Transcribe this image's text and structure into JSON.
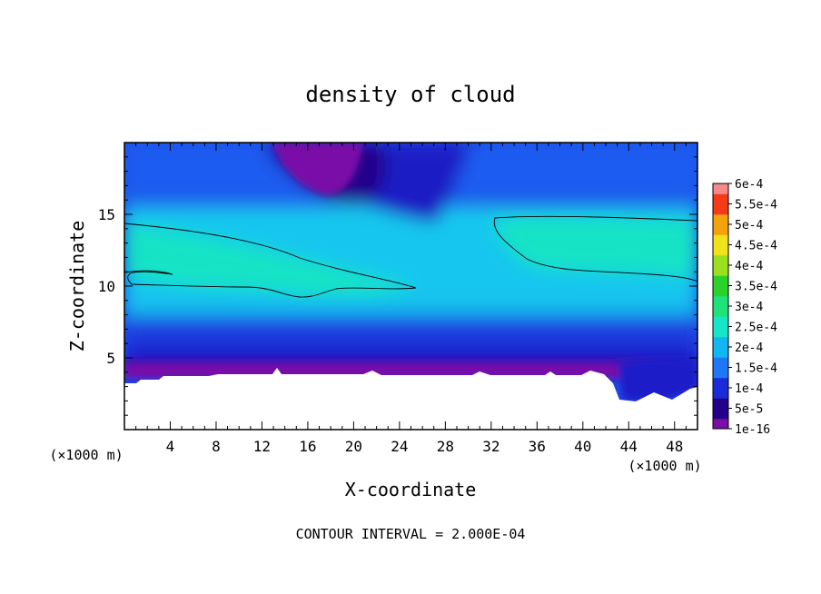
{
  "chart_data": {
    "type": "heatmap",
    "title": "density of cloud",
    "xlabel": "X-coordinate",
    "ylabel": "Z-coordinate",
    "x_unit_label": "(×1000 m)",
    "y_unit_label": "(×1000 m)",
    "footer": "CONTOUR INTERVAL = 2.000E-04",
    "xlim": [
      0,
      50
    ],
    "ylim": [
      0,
      20
    ],
    "x_ticks": [
      "4",
      "8",
      "12",
      "16",
      "20",
      "24",
      "28",
      "32",
      "36",
      "40",
      "44",
      "48"
    ],
    "y_ticks": [
      "5",
      "10",
      "15"
    ],
    "colorbar": {
      "labels": [
        "1e-16",
        "5e-5",
        "1e-4",
        "1.5e-4",
        "2e-4",
        "2.5e-4",
        "3e-4",
        "3.5e-4",
        "4e-4",
        "4.5e-4",
        "5e-4",
        "5.5e-4",
        "6e-4"
      ],
      "colors": [
        "#7a0fa8",
        "#23008a",
        "#1a2bd8",
        "#1f78f5",
        "#12b6f0",
        "#16e6c8",
        "#1fe27a",
        "#2bd12b",
        "#9be01c",
        "#f2e21a",
        "#f5a20f",
        "#f53a1a",
        "#f58a8a"
      ]
    },
    "contour_level": 0.0002,
    "no_data_below_z": 3.6,
    "notes_fields": {
      "min_region": {
        "x": [
          13,
          20
        ],
        "z": [
          17,
          20
        ],
        "value": "1e-16"
      },
      "max_regions": [
        {
          "x": [
            0,
            25
          ],
          "z": [
            9.5,
            14.2
          ],
          "value": "2e-4"
        },
        {
          "x": [
            32,
            50
          ],
          "z": [
            10.5,
            14.7
          ],
          "value": "2e-4"
        }
      ]
    }
  }
}
